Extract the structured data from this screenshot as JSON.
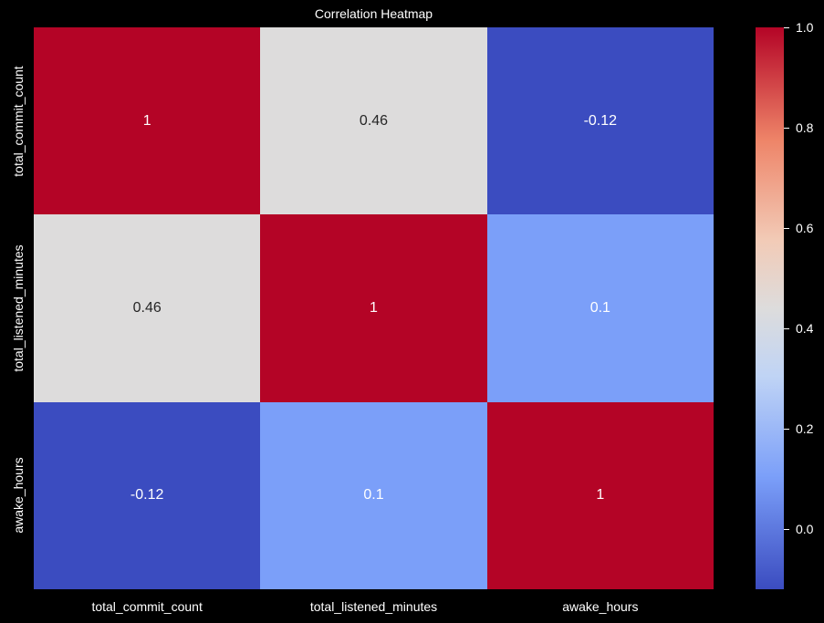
{
  "chart_data": {
    "type": "heatmap",
    "title": "Correlation Heatmap",
    "x_labels": [
      "total_commit_count",
      "total_listened_minutes",
      "awake_hours"
    ],
    "y_labels": [
      "total_commit_count",
      "total_listened_minutes",
      "awake_hours"
    ],
    "values": [
      [
        1,
        0.46,
        -0.12
      ],
      [
        0.46,
        1,
        0.1
      ],
      [
        -0.12,
        0.1,
        1
      ]
    ],
    "annotations": [
      [
        "1",
        "0.46",
        "-0.12"
      ],
      [
        "0.46",
        "1",
        "0.1"
      ],
      [
        "-0.12",
        "0.1",
        "1"
      ]
    ],
    "colormap": "coolwarm",
    "colorbar": {
      "ticks": [
        "0.0",
        "0.2",
        "0.4",
        "0.6",
        "0.8",
        "1.0"
      ],
      "range": [
        -0.12,
        1.0
      ]
    },
    "cell_colors": [
      [
        "#b40426",
        "#dddcdc",
        "#3b4cc0"
      ],
      [
        "#dddcdc",
        "#b40426",
        "#7b9ff9"
      ],
      [
        "#3b4cc0",
        "#7b9ff9",
        "#b40426"
      ]
    ],
    "text_colors": [
      [
        "#ffffff",
        "#262626",
        "#ffffff"
      ],
      [
        "#262626",
        "#ffffff",
        "#ffffff"
      ],
      [
        "#ffffff",
        "#ffffff",
        "#ffffff"
      ]
    ]
  }
}
